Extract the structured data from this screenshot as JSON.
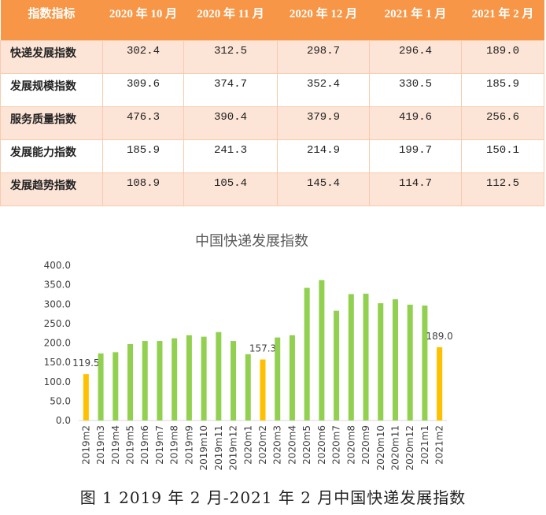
{
  "table": {
    "headers": [
      "指数指标",
      "2020 年 10 月",
      "2020 年 11 月",
      "2020 年 12 月",
      "2021 年 1 月",
      "2021 年 2 月"
    ],
    "rows": [
      [
        "快递发展指数",
        "302.4",
        "312.5",
        "298.7",
        "296.4",
        "189.0"
      ],
      [
        "发展规模指数",
        "309.6",
        "374.7",
        "352.4",
        "330.5",
        "185.9"
      ],
      [
        "服务质量指数",
        "476.3",
        "390.4",
        "379.9",
        "419.6",
        "256.6"
      ],
      [
        "发展能力指数",
        "185.9",
        "241.3",
        "214.9",
        "199.7",
        "150.1"
      ],
      [
        "发展趋势指数",
        "108.9",
        "105.4",
        "145.4",
        "114.7",
        "112.5"
      ]
    ],
    "header_color": "#f79646",
    "stripe_color": "#fce4d6"
  },
  "chart_data": {
    "type": "bar",
    "title": "中国快递发展指数",
    "categories": [
      "2019m2",
      "2019m3",
      "2019m4",
      "2019m5",
      "2019m6",
      "2019m7",
      "2019m8",
      "2019m9",
      "2019m10",
      "2019m11",
      "2019m12",
      "2020m1",
      "2020m2",
      "2020m3",
      "2020m4",
      "2020m5",
      "2020m6",
      "2020m7",
      "2020m8",
      "2020m9",
      "2020m10",
      "2020m11",
      "2020m12",
      "2021m1",
      "2021m2"
    ],
    "values": [
      119.5,
      173,
      176,
      197,
      205,
      205,
      212,
      220,
      216,
      228,
      205,
      171,
      157.3,
      214,
      220,
      342,
      362,
      283,
      326,
      327,
      302.4,
      312.5,
      298.7,
      296.4,
      189.0
    ],
    "highlight": [
      "2019m2",
      "2020m2",
      "2021m2"
    ],
    "data_labels": {
      "2019m2": "119.5",
      "2020m2": "157.3",
      "2021m2": "189.0"
    },
    "yticks": [
      "0.0",
      "50.0",
      "100.0",
      "150.0",
      "200.0",
      "250.0",
      "300.0",
      "350.0",
      "400.0"
    ],
    "ylim": [
      0,
      400
    ],
    "colors": {
      "normal": "#92d050",
      "highlight": "#ffc000"
    },
    "grid": false
  },
  "caption": "图 1 2019 年 2 月-2021 年 2 月中国快递发展指数"
}
